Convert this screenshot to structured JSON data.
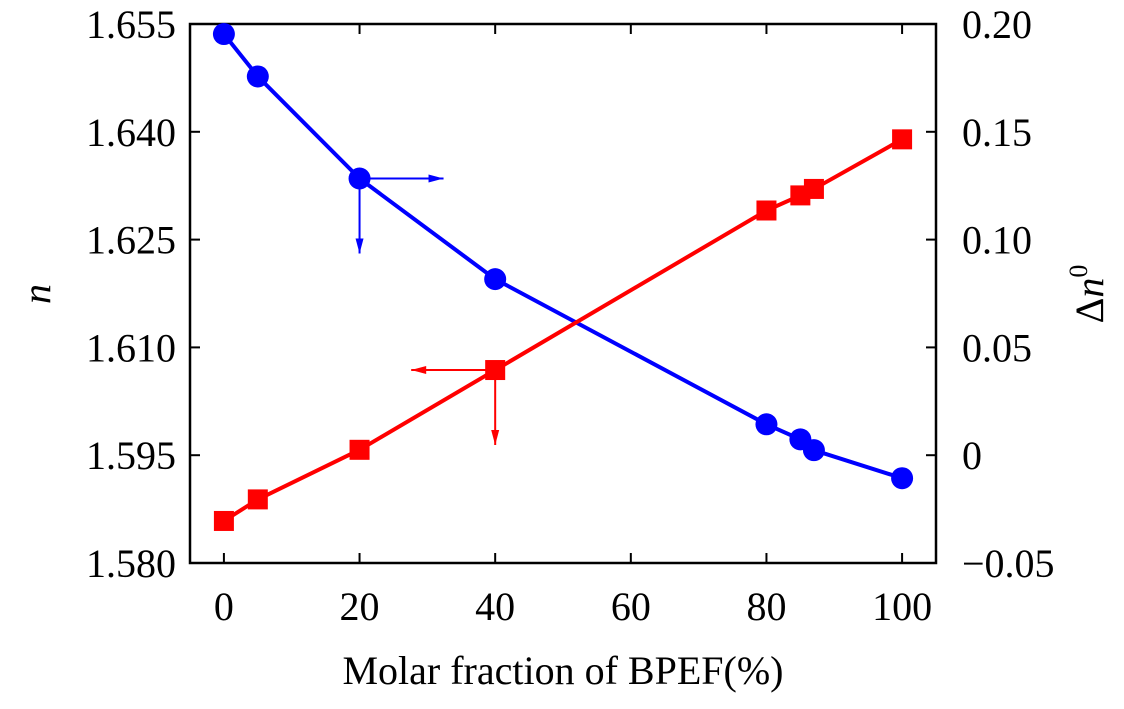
{
  "chart_data": {
    "type": "line",
    "xlabel": "Molar fraction of BPEF(%)",
    "ylabel_left": "n",
    "ylabel_right": {
      "prefix": "Δ",
      "main": "n",
      "sup": "0"
    },
    "xlim": [
      -5,
      105
    ],
    "ylim_left": [
      1.58,
      1.655
    ],
    "ylim_right": [
      -0.05,
      0.2
    ],
    "x_ticks": [
      {
        "value": 0,
        "label": "0"
      },
      {
        "value": 20,
        "label": "20"
      },
      {
        "value": 40,
        "label": "40"
      },
      {
        "value": 60,
        "label": "60"
      },
      {
        "value": 80,
        "label": "80"
      },
      {
        "value": 100,
        "label": "100"
      }
    ],
    "y_left_ticks": [
      {
        "value": 1.58,
        "label": "1.580"
      },
      {
        "value": 1.595,
        "label": "1.595"
      },
      {
        "value": 1.61,
        "label": "1.610"
      },
      {
        "value": 1.625,
        "label": "1.625"
      },
      {
        "value": 1.64,
        "label": "1.640"
      },
      {
        "value": 1.655,
        "label": "1.655"
      }
    ],
    "y_right_ticks": [
      {
        "value": -0.05,
        "label": "−0.05"
      },
      {
        "value": 0,
        "label": "0"
      },
      {
        "value": 0.05,
        "label": "0.05"
      },
      {
        "value": 0.1,
        "label": "0.10"
      },
      {
        "value": 0.15,
        "label": "0.15"
      },
      {
        "value": 0.2,
        "label": "0.20"
      }
    ],
    "series": [
      {
        "axis": "left",
        "marker": "circle",
        "color": "#0000ff",
        "x": [
          0,
          5,
          20,
          40,
          80,
          85,
          87,
          100
        ],
        "y": [
          1.6536,
          1.6477,
          1.6335,
          1.6195,
          1.5993,
          1.5972,
          1.5957,
          1.5918
        ],
        "indicator": {
          "at_index": 2,
          "direction": "right"
        }
      },
      {
        "axis": "right",
        "marker": "square",
        "color": "#ff0000",
        "x": [
          0,
          5,
          20,
          40,
          80,
          85,
          87,
          100
        ],
        "y": [
          -0.0305,
          -0.0205,
          0.0025,
          0.0395,
          0.1135,
          0.1205,
          0.1235,
          0.1465
        ],
        "indicator": {
          "at_index": 3,
          "direction": "left"
        }
      }
    ],
    "grid": false,
    "legend": "none"
  }
}
